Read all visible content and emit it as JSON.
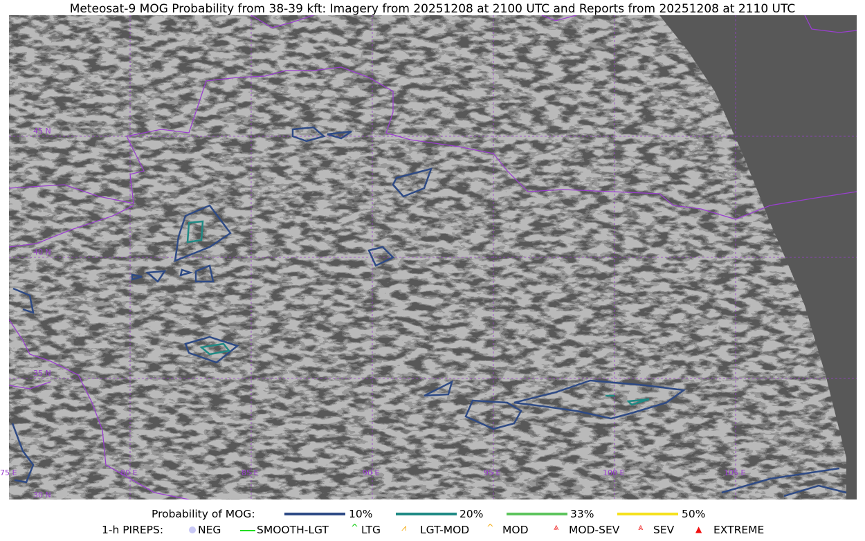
{
  "title": "Meteosat-9 MOG Probability from 38-39 kft: Imagery from 20251208 at 2100 UTC and Reports from 20251208 at 2110 UTC",
  "map": {
    "longitude_labels": [
      "75 E",
      "80 E",
      "85 E",
      "90 E",
      "95 E",
      "100 E",
      "105 E"
    ],
    "latitude_labels": [
      "45 N",
      "40 N",
      "35 N",
      "30 N"
    ],
    "colors": {
      "borders": "#9a3fd0",
      "gridlines": "#9a3fd0",
      "no_data": "#585858"
    }
  },
  "legend": {
    "probability": {
      "label": "Probability of MOG:",
      "levels": [
        {
          "label": "10%",
          "color": "#2e4a85"
        },
        {
          "label": "20%",
          "color": "#1f8a84"
        },
        {
          "label": "33%",
          "color": "#5cc45c"
        },
        {
          "label": "50%",
          "color": "#f5e11d"
        }
      ]
    },
    "pireps": {
      "label": "1-h PIREPS:",
      "items": [
        {
          "label": "NEG",
          "icon": "neg-circle-icon",
          "color": "#c8c8f5"
        },
        {
          "label": "SMOOTH-LGT",
          "icon": "line-icon",
          "color": "#22dd22"
        },
        {
          "label": "LTG",
          "icon": "caret-icon",
          "color": "#11cc11"
        },
        {
          "label": "LGT-MOD",
          "icon": "caret-bar-icon",
          "color": "#f5b021"
        },
        {
          "label": "MOD",
          "icon": "caret-icon",
          "color": "#f5b021"
        },
        {
          "label": "MOD-SEV",
          "icon": "double-caret-icon",
          "color": "#f03030"
        },
        {
          "label": "SEV",
          "icon": "double-caret-icon",
          "color": "#f03030"
        },
        {
          "label": "EXTREME",
          "icon": "filled-triangle-icon",
          "color": "#f01010"
        }
      ]
    }
  }
}
